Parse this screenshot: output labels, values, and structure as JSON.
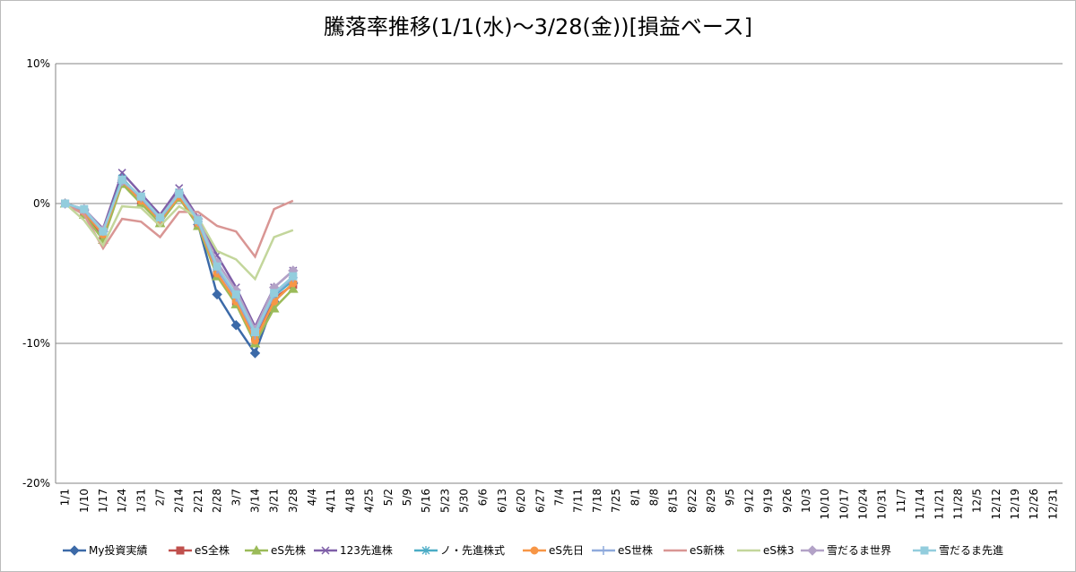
{
  "chart_data": {
    "type": "line",
    "title": "騰落率推移(1/1(水)～3/28(金))[損益ベース]",
    "categories": [
      "1/1",
      "1/10",
      "1/17",
      "1/24",
      "1/31",
      "2/7",
      "2/14",
      "2/21",
      "2/28",
      "3/7",
      "3/14",
      "3/21",
      "3/28",
      "4/4",
      "4/11",
      "4/18",
      "4/25",
      "5/2",
      "5/9",
      "5/16",
      "5/23",
      "5/30",
      "6/6",
      "6/13",
      "6/20",
      "6/27",
      "7/4",
      "7/11",
      "7/18",
      "7/25",
      "8/1",
      "8/8",
      "8/15",
      "8/22",
      "8/29",
      "9/5",
      "9/12",
      "9/19",
      "9/26",
      "10/3",
      "10/10",
      "10/17",
      "10/24",
      "10/31",
      "11/7",
      "11/14",
      "11/21",
      "11/28",
      "12/5",
      "12/12",
      "12/19",
      "12/26",
      "12/31"
    ],
    "ylim": [
      -20,
      10
    ],
    "yticks": [
      {
        "value": -20,
        "label": "-20%"
      },
      {
        "value": -10,
        "label": "-10%"
      },
      {
        "value": 0,
        "label": "0%"
      },
      {
        "value": 10,
        "label": "10%"
      }
    ],
    "grid": true,
    "legend": "bottom",
    "series": [
      {
        "name": "My投資実績",
        "color": "#3c6aa8",
        "marker": "diamond",
        "values": [
          0,
          -0.5,
          -2,
          1.5,
          0.3,
          -1,
          0.5,
          -1.5,
          -6.5,
          -8.7,
          -10.7,
          -7,
          -5.7,
          null,
          null,
          null,
          null,
          null,
          null,
          null,
          null,
          null,
          null,
          null,
          null,
          null,
          null,
          null,
          null,
          null,
          null,
          null,
          null,
          null,
          null,
          null,
          null,
          null,
          null,
          null,
          null,
          null,
          null,
          null,
          null,
          null,
          null,
          null,
          null,
          null,
          null,
          null,
          null
        ]
      },
      {
        "name": "eS全株",
        "color": "#c0504d",
        "marker": "square",
        "values": [
          0,
          -0.7,
          -2.3,
          1.6,
          0.2,
          -1.2,
          0.6,
          -1.5,
          -5,
          -7,
          -9.5,
          -6.8,
          -5.8,
          null,
          null,
          null,
          null,
          null,
          null,
          null,
          null,
          null,
          null,
          null,
          null,
          null,
          null,
          null,
          null,
          null,
          null,
          null,
          null,
          null,
          null,
          null,
          null,
          null,
          null,
          null,
          null,
          null,
          null,
          null,
          null,
          null,
          null,
          null,
          null,
          null,
          null,
          null,
          null
        ]
      },
      {
        "name": "eS先株",
        "color": "#9bbb59",
        "marker": "triangle",
        "values": [
          0,
          -0.8,
          -2.6,
          1.4,
          0,
          -1.4,
          0.4,
          -1.6,
          -5.2,
          -7.2,
          -10,
          -7.5,
          -6.1,
          null,
          null,
          null,
          null,
          null,
          null,
          null,
          null,
          null,
          null,
          null,
          null,
          null,
          null,
          null,
          null,
          null,
          null,
          null,
          null,
          null,
          null,
          null,
          null,
          null,
          null,
          null,
          null,
          null,
          null,
          null,
          null,
          null,
          null,
          null,
          null,
          null,
          null,
          null,
          null
        ]
      },
      {
        "name": "123先進株",
        "color": "#7f5fa8",
        "marker": "x",
        "values": [
          0,
          -0.4,
          -1.8,
          2.2,
          0.7,
          -0.8,
          1.1,
          -1,
          -3.7,
          -6,
          -8.8,
          -6,
          -4.8,
          null,
          null,
          null,
          null,
          null,
          null,
          null,
          null,
          null,
          null,
          null,
          null,
          null,
          null,
          null,
          null,
          null,
          null,
          null,
          null,
          null,
          null,
          null,
          null,
          null,
          null,
          null,
          null,
          null,
          null,
          null,
          null,
          null,
          null,
          null,
          null,
          null,
          null,
          null,
          null
        ]
      },
      {
        "name": "ノ・先進株式",
        "color": "#4bacc6",
        "marker": "star",
        "values": [
          0,
          -0.5,
          -2,
          1.8,
          0.4,
          -1.1,
          0.8,
          -1.3,
          -4.6,
          -6.6,
          -9.3,
          -6.6,
          -5.5,
          null,
          null,
          null,
          null,
          null,
          null,
          null,
          null,
          null,
          null,
          null,
          null,
          null,
          null,
          null,
          null,
          null,
          null,
          null,
          null,
          null,
          null,
          null,
          null,
          null,
          null,
          null,
          null,
          null,
          null,
          null,
          null,
          null,
          null,
          null,
          null,
          null,
          null,
          null,
          null
        ]
      },
      {
        "name": "eS先日",
        "color": "#f79646",
        "marker": "circle",
        "values": [
          0,
          -0.6,
          -2.2,
          1.6,
          0.2,
          -1.2,
          0.5,
          -1.4,
          -5,
          -7,
          -9.8,
          -7,
          -5.7,
          null,
          null,
          null,
          null,
          null,
          null,
          null,
          null,
          null,
          null,
          null,
          null,
          null,
          null,
          null,
          null,
          null,
          null,
          null,
          null,
          null,
          null,
          null,
          null,
          null,
          null,
          null,
          null,
          null,
          null,
          null,
          null,
          null,
          null,
          null,
          null,
          null,
          null,
          null,
          null
        ]
      },
      {
        "name": "eS世株",
        "color": "#8faadc",
        "marker": "plus",
        "values": [
          0,
          -0.5,
          -2,
          1.7,
          0.4,
          -1.1,
          0.7,
          -1.3,
          -4.7,
          -6.7,
          -9.4,
          -6.5,
          -5.3,
          null,
          null,
          null,
          null,
          null,
          null,
          null,
          null,
          null,
          null,
          null,
          null,
          null,
          null,
          null,
          null,
          null,
          null,
          null,
          null,
          null,
          null,
          null,
          null,
          null,
          null,
          null,
          null,
          null,
          null,
          null,
          null,
          null,
          null,
          null,
          null,
          null,
          null,
          null,
          null
        ]
      },
      {
        "name": "eS新株",
        "color": "#d99694",
        "marker": "none",
        "values": [
          0,
          -0.8,
          -3.2,
          -1.1,
          -1.3,
          -2.4,
          -0.6,
          -0.6,
          -1.6,
          -2,
          -3.8,
          -0.4,
          0.2,
          null,
          null,
          null,
          null,
          null,
          null,
          null,
          null,
          null,
          null,
          null,
          null,
          null,
          null,
          null,
          null,
          null,
          null,
          null,
          null,
          null,
          null,
          null,
          null,
          null,
          null,
          null,
          null,
          null,
          null,
          null,
          null,
          null,
          null,
          null,
          null,
          null,
          null,
          null,
          null
        ]
      },
      {
        "name": "eS株3",
        "color": "#c3d69b",
        "marker": "none",
        "values": [
          0,
          -1.2,
          -3,
          -0.2,
          -0.3,
          -1.6,
          -0.2,
          -1,
          -3.4,
          -4,
          -5.4,
          -2.4,
          -1.9,
          null,
          null,
          null,
          null,
          null,
          null,
          null,
          null,
          null,
          null,
          null,
          null,
          null,
          null,
          null,
          null,
          null,
          null,
          null,
          null,
          null,
          null,
          null,
          null,
          null,
          null,
          null,
          null,
          null,
          null,
          null,
          null,
          null,
          null,
          null,
          null,
          null,
          null,
          null,
          null
        ]
      },
      {
        "name": "雪だるま世界",
        "color": "#b3a2c7",
        "marker": "diamond",
        "values": [
          0,
          -0.4,
          -1.9,
          1.6,
          0.5,
          -1,
          0.8,
          -1.1,
          -4.2,
          -6.2,
          -9,
          -6,
          -4.8,
          null,
          null,
          null,
          null,
          null,
          null,
          null,
          null,
          null,
          null,
          null,
          null,
          null,
          null,
          null,
          null,
          null,
          null,
          null,
          null,
          null,
          null,
          null,
          null,
          null,
          null,
          null,
          null,
          null,
          null,
          null,
          null,
          null,
          null,
          null,
          null,
          null,
          null,
          null,
          null
        ]
      },
      {
        "name": "雪だるま先進",
        "color": "#93cddd",
        "marker": "square",
        "values": [
          0,
          -0.4,
          -2,
          1.7,
          0.5,
          -1,
          0.7,
          -1.2,
          -4.5,
          -6.5,
          -9.2,
          -6.4,
          -5.2,
          null,
          null,
          null,
          null,
          null,
          null,
          null,
          null,
          null,
          null,
          null,
          null,
          null,
          null,
          null,
          null,
          null,
          null,
          null,
          null,
          null,
          null,
          null,
          null,
          null,
          null,
          null,
          null,
          null,
          null,
          null,
          null,
          null,
          null,
          null,
          null,
          null,
          null,
          null,
          null
        ]
      }
    ]
  }
}
